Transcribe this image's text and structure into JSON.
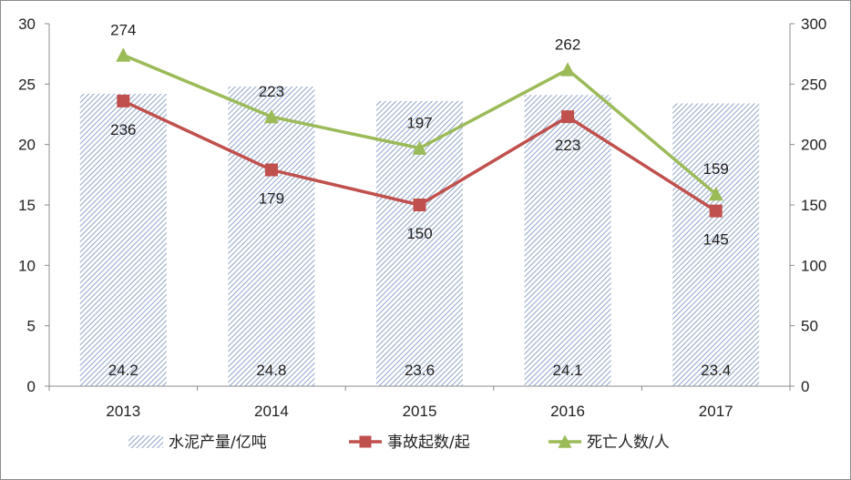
{
  "chart_data": {
    "type": "bar",
    "categories": [
      "2013",
      "2014",
      "2015",
      "2016",
      "2017"
    ],
    "series": [
      {
        "name": "水泥产量/亿吨",
        "type": "bar",
        "axis": "left",
        "values": [
          24.2,
          24.8,
          23.6,
          24.1,
          23.4
        ],
        "color": "#8ea4c8"
      },
      {
        "name": "事故起数/起",
        "type": "line",
        "axis": "right",
        "values": [
          236,
          179,
          150,
          223,
          145
        ],
        "color": "#c0504d",
        "marker": "square"
      },
      {
        "name": "死亡人数/人",
        "type": "line",
        "axis": "right",
        "values": [
          274,
          223,
          197,
          262,
          159
        ],
        "color": "#9bbb59",
        "marker": "triangle"
      }
    ],
    "y_left": {
      "min": 0,
      "max": 30,
      "ticks": [
        0,
        5,
        10,
        15,
        20,
        25,
        30
      ]
    },
    "y_right": {
      "min": 0,
      "max": 300,
      "ticks": [
        0,
        50,
        100,
        150,
        200,
        250,
        300
      ]
    },
    "grid": false,
    "legend_position": "bottom"
  }
}
